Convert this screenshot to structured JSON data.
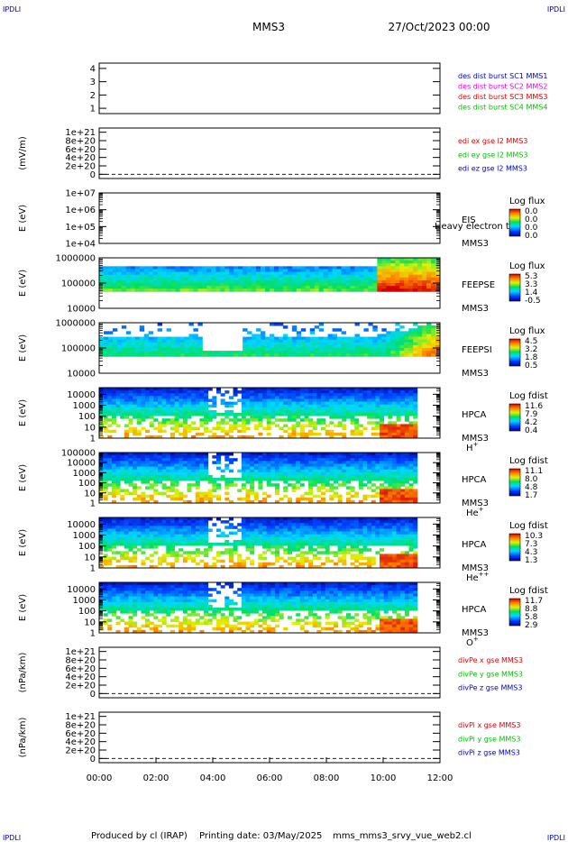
{
  "header": {
    "corner_tag": "IPDLI",
    "mission": "MMS3",
    "date_time": "27/Oct/2023 00:00"
  },
  "footer": {
    "produced_by": "Produced by cl (IRAP)",
    "printing_date": "Printing date: 03/May/2025",
    "script": "mms_mms3_srvy_vue_web2.cl"
  },
  "time_axis": {
    "ticks": [
      "00:00",
      "02:00",
      "04:00",
      "06:00",
      "08:00",
      "10:00",
      "12:00"
    ],
    "range_hours": [
      0,
      12
    ]
  },
  "colors": {
    "red": "#e00000",
    "green": "#00c000",
    "blue": "#0000c0",
    "magenta": "#e000e0"
  },
  "chart_data": [
    {
      "type": "line",
      "ylabel": "",
      "yticks": [
        "1",
        "2",
        "3",
        "4"
      ],
      "ylim": [
        0.6,
        4.4
      ],
      "grid": false,
      "legend": [
        {
          "label": "des dist burst SC1 MMS1",
          "color": "#0000c0"
        },
        {
          "label": "des dist burst SC2 MMS2",
          "color": "#e000e0"
        },
        {
          "label": "des dist burst SC3 MMS3",
          "color": "#e00000"
        },
        {
          "label": "des dist burst SC4 MMS4",
          "color": "#00c000"
        }
      ],
      "series": []
    },
    {
      "type": "line",
      "ylabel": "(mV/m)",
      "yticks": [
        "0",
        "2e+20",
        "4e+20",
        "6e+20",
        "8e+20",
        "1e+21"
      ],
      "ylim": [
        -1e+20,
        1.1e+21
      ],
      "zero_line": true,
      "legend": [
        {
          "label": "edi ex gse l2 MMS3",
          "color": "#e00000"
        },
        {
          "label": "edi ey gse l2 MMS3",
          "color": "#00c000"
        },
        {
          "label": "edi ez gse l2 MMS3",
          "color": "#0000c0"
        }
      ],
      "series": []
    },
    {
      "type": "heatmap",
      "ylabel": "E (eV)",
      "yticks": [
        "1e+04",
        "1e+05",
        "1e+06",
        "1e+07"
      ],
      "log_y": true,
      "ylim": [
        10000,
        10000000
      ],
      "instrument": [
        "EIS",
        "MMS3"
      ],
      "overlay_text": "Heavy electron to",
      "colorbar": {
        "title": "Log flux",
        "ticks": [
          "0.0",
          "0.0",
          "0.0",
          "0.0"
        ]
      },
      "coverage": "empty"
    },
    {
      "type": "heatmap",
      "ylabel": "E (eV)",
      "yticks": [
        "10000",
        "100000",
        "1000000"
      ],
      "log_y": true,
      "ylim": [
        10000,
        1000000
      ],
      "instrument": [
        "FEEPSE",
        "MMS3"
      ],
      "colorbar": {
        "title": "Log flux",
        "ticks": [
          "5.3",
          "3.3",
          "1.4",
          "-0.5"
        ]
      },
      "coverage_hours": [
        0,
        12
      ]
    },
    {
      "type": "heatmap",
      "ylabel": "E (eV)",
      "yticks": [
        "10000",
        "100000",
        "1000000"
      ],
      "log_y": true,
      "ylim": [
        10000,
        1000000
      ],
      "instrument": [
        "FEEPSI",
        "MMS3"
      ],
      "colorbar": {
        "title": "Log flux",
        "ticks": [
          "4.5",
          "3.2",
          "1.8",
          "0.5"
        ]
      },
      "coverage_hours": [
        0,
        12
      ]
    },
    {
      "type": "heatmap",
      "ylabel": "E (eV)",
      "yticks": [
        "1",
        "10",
        "100",
        "1000",
        "10000"
      ],
      "log_y": true,
      "ylim": [
        1,
        40000
      ],
      "instrument": [
        "HPCA",
        "MMS3"
      ],
      "species_base": "H",
      "species_sup": "+",
      "colorbar": {
        "title": "Log fdist",
        "ticks": [
          "11.6",
          "7.9",
          "4.2",
          "0.4"
        ]
      },
      "coverage_hours": [
        0,
        11.2
      ]
    },
    {
      "type": "heatmap",
      "ylabel": "E (eV)",
      "yticks": [
        "1",
        "10",
        "100",
        "1000",
        "10000",
        "100000"
      ],
      "log_y": true,
      "ylim": [
        1,
        100000
      ],
      "instrument": [
        "HPCA",
        "MMS3"
      ],
      "species_base": "He",
      "species_sup": "+",
      "colorbar": {
        "title": "Log fdist",
        "ticks": [
          "11.1",
          "8.0",
          "4.8",
          "1.7"
        ]
      },
      "coverage_hours": [
        0,
        11.2
      ]
    },
    {
      "type": "heatmap",
      "ylabel": "E (eV)",
      "yticks": [
        "1",
        "10",
        "100",
        "1000",
        "10000"
      ],
      "log_y": true,
      "ylim": [
        1,
        40000
      ],
      "instrument": [
        "HPCA",
        "MMS3"
      ],
      "species_base": "He",
      "species_sup": "++",
      "colorbar": {
        "title": "Log fdist",
        "ticks": [
          "10.3",
          "7.3",
          "4.3",
          "1.3"
        ]
      },
      "coverage_hours": [
        0,
        11.2
      ]
    },
    {
      "type": "heatmap",
      "ylabel": "E (eV)",
      "yticks": [
        "1",
        "10",
        "100",
        "1000",
        "10000"
      ],
      "log_y": true,
      "ylim": [
        1,
        40000
      ],
      "instrument": [
        "HPCA",
        "MMS3"
      ],
      "species_base": "O",
      "species_sup": "+",
      "colorbar": {
        "title": "Log fdist",
        "ticks": [
          "11.7",
          "8.8",
          "5.8",
          "2.9"
        ]
      },
      "coverage_hours": [
        0,
        11.2
      ]
    },
    {
      "type": "line",
      "ylabel": "(nPa/km)",
      "yticks": [
        "0",
        "2e+20",
        "4e+20",
        "6e+20",
        "8e+20",
        "1e+21"
      ],
      "ylim": [
        -1e+20,
        1.1e+21
      ],
      "zero_line": true,
      "legend": [
        {
          "label": "divPe x gse MMS3",
          "color": "#e00000"
        },
        {
          "label": "divPe y gse MMS3",
          "color": "#00c000"
        },
        {
          "label": "divPe z gse MMS3",
          "color": "#0000c0"
        }
      ],
      "series": []
    },
    {
      "type": "line",
      "ylabel": "(nPa/km)",
      "yticks": [
        "0",
        "2e+20",
        "4e+20",
        "6e+20",
        "8e+20",
        "1e+21"
      ],
      "ylim": [
        -1e+20,
        1.1e+21
      ],
      "zero_line": true,
      "legend": [
        {
          "label": "divPi x gse MMS3",
          "color": "#e00000"
        },
        {
          "label": "divPi y gse MMS3",
          "color": "#00c000"
        },
        {
          "label": "divPi z gse MMS3",
          "color": "#0000c0"
        }
      ],
      "series": []
    }
  ]
}
